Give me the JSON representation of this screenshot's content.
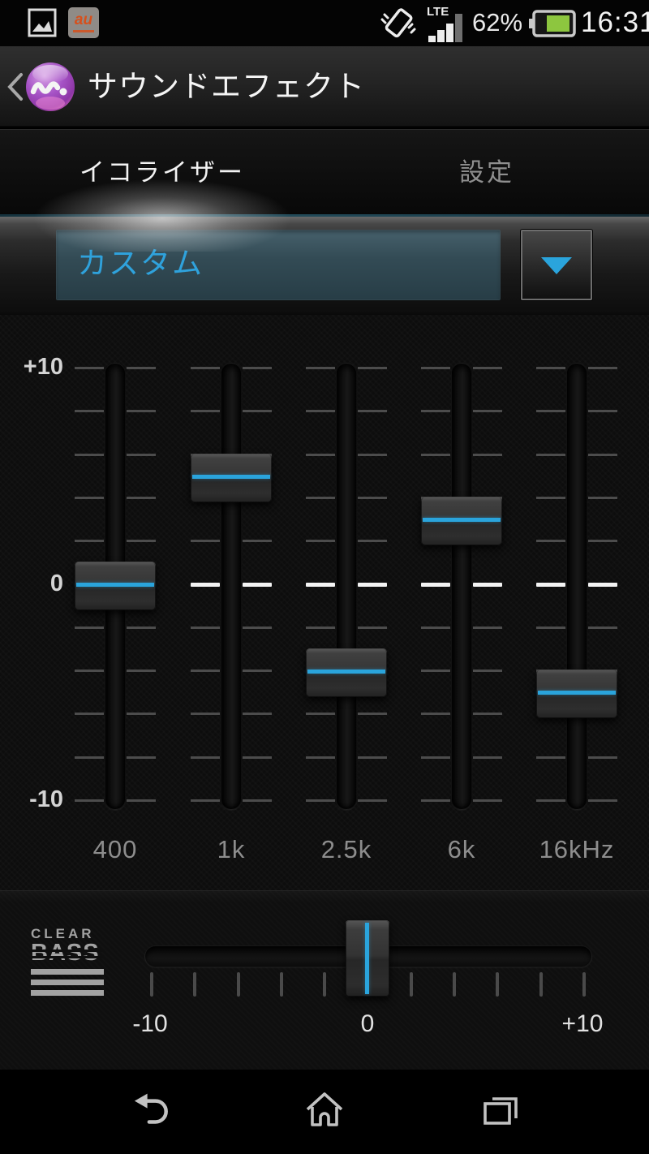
{
  "status_bar": {
    "time": "16:31",
    "battery_percent": "62%",
    "network_label": "LTE",
    "icons": [
      "gallery-icon",
      "au-carrier-icon",
      "vibrate-icon",
      "lte-signal-icon",
      "battery-icon"
    ]
  },
  "header": {
    "title": "サウンドエフェクト"
  },
  "tabs": [
    {
      "label": "イコライザー",
      "active": true
    },
    {
      "label": "設定",
      "active": false
    }
  ],
  "preset_selector": {
    "value": "カスタム"
  },
  "equalizer": {
    "min": -10,
    "max": 10,
    "scale_labels": [
      "+10",
      "0",
      "-10"
    ],
    "bands": [
      {
        "label": "400",
        "value": 0
      },
      {
        "label": "1k",
        "value": 5
      },
      {
        "label": "2.5k",
        "value": -4
      },
      {
        "label": "6k",
        "value": 3
      },
      {
        "label": "16kHz",
        "value": -5
      }
    ]
  },
  "clear_bass": {
    "logo_line1": "CLEAR",
    "logo_line2": "BASS",
    "min": -10,
    "max": 10,
    "value": 0,
    "axis_labels": [
      "-10",
      "0",
      "+10"
    ]
  },
  "colors": {
    "accent_blue": "#2AA4DC",
    "battery_green": "#8DC63F"
  }
}
